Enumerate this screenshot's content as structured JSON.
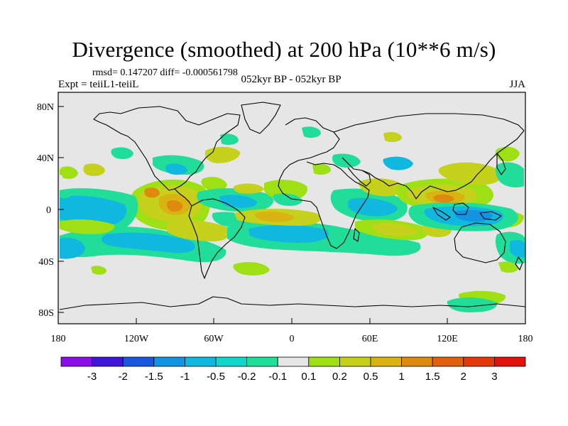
{
  "title": "Divergence (smoothed) at 200 hPa (10**6 m/s)",
  "stats": "rmsd= 0.147207 diff= -0.000561798",
  "expt": "Expt = teiiL1-teiiL",
  "period": "052kyr BP - 052kyr BP",
  "season": "JJA",
  "axes": {
    "lat_ticks": [
      "80N",
      "40N",
      "0",
      "40S",
      "80S"
    ],
    "lon_ticks": [
      "180",
      "120W",
      "60W",
      "0",
      "60E",
      "120E",
      "180"
    ]
  },
  "colorbar": {
    "labels": [
      "-3",
      "-2",
      "-1.5",
      "-1",
      "-0.5",
      "-0.2",
      "-0.1",
      "0.1",
      "0.2",
      "0.5",
      "1",
      "1.5",
      "2",
      "3"
    ],
    "colors": [
      "#8a0ee6",
      "#3d16d6",
      "#1a56de",
      "#1294e3",
      "#10b8e0",
      "#12d6cc",
      "#20dd9a",
      "#e6e6e6",
      "#9ee014",
      "#c5d11a",
      "#d9b312",
      "#dd8a0f",
      "#e0600d",
      "#e2380c",
      "#e2120c"
    ]
  },
  "colors": {
    "ocean_background": "#e6e6e6",
    "coast": "#000000"
  }
}
